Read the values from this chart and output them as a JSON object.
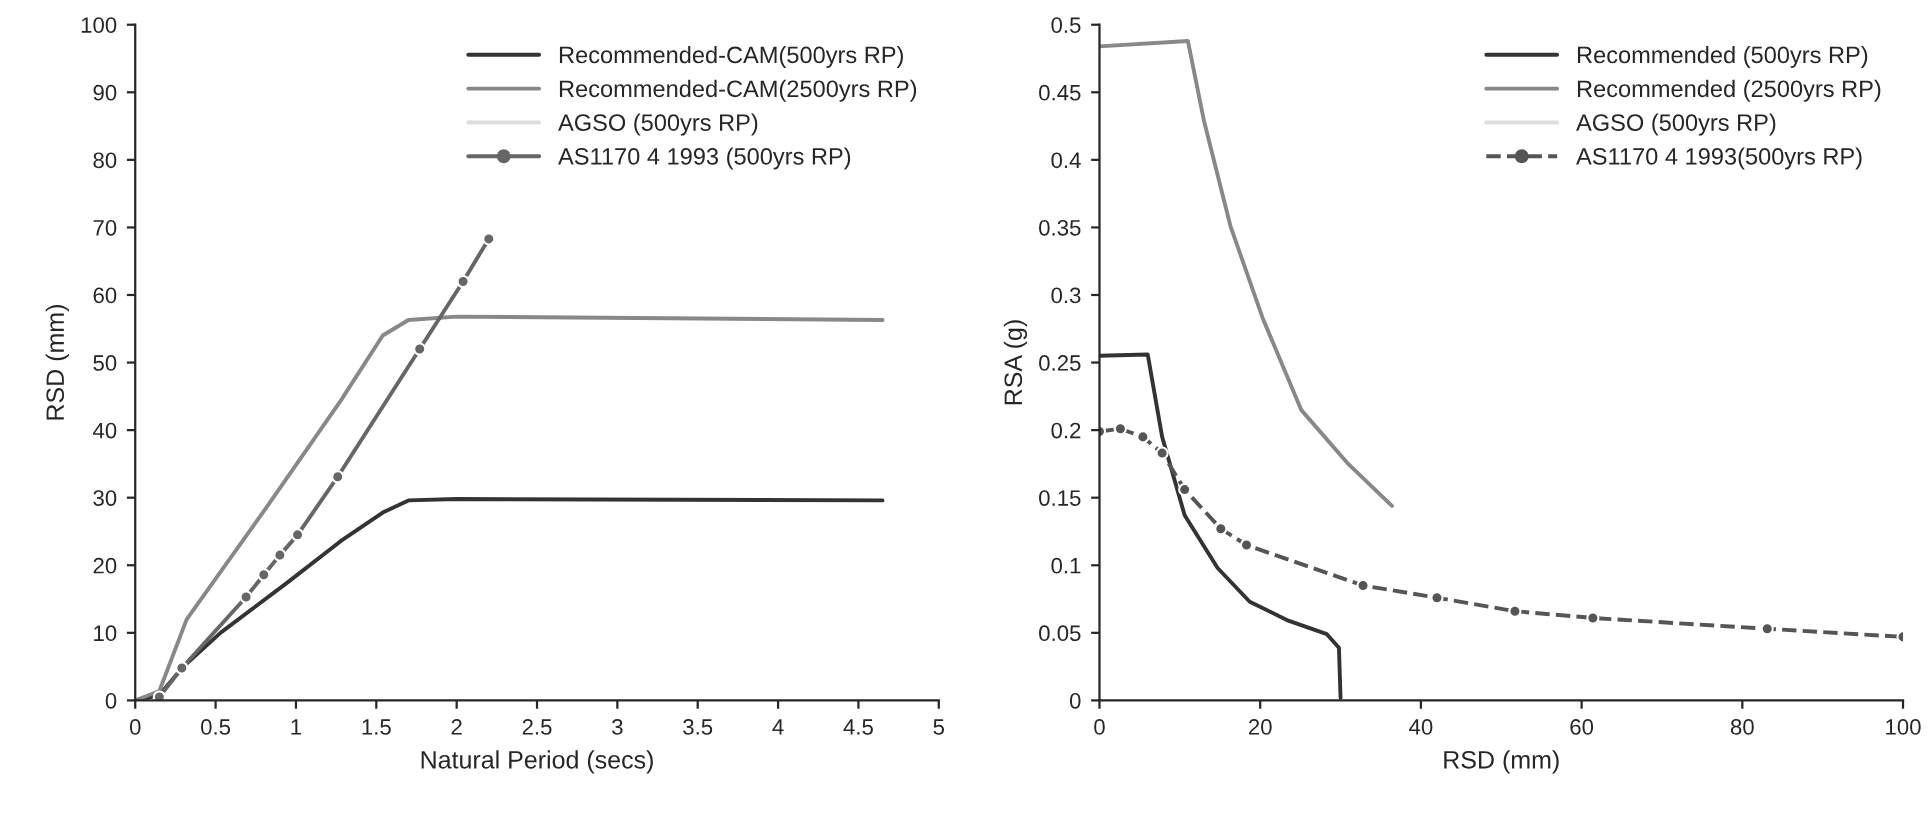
{
  "chart_data": [
    {
      "type": "line",
      "xlabel": "Natural Period (secs)",
      "ylabel": "RSD (mm)",
      "xlim": [
        0,
        5
      ],
      "xticks": [
        0,
        0.5,
        1,
        1.5,
        2,
        2.5,
        3,
        3.5,
        4,
        4.5,
        5
      ],
      "ylim": [
        0,
        100
      ],
      "yticks": [
        0,
        10,
        20,
        30,
        40,
        50,
        60,
        70,
        80,
        90,
        100
      ],
      "grid": false,
      "legend": "top right",
      "series": [
        {
          "name": "Recommended-CAM(500yrs RP)",
          "color": "#333333",
          "line_style": "solid",
          "marker": "none",
          "x": [
            0,
            0.15,
            0.3,
            0.53,
            0.95,
            1.28,
            1.54,
            1.7,
            2.0,
            4.65
          ],
          "values": [
            0,
            0.8,
            5,
            10,
            17.5,
            23.6,
            27.8,
            29.6,
            29.8,
            29.6
          ]
        },
        {
          "name": "Recommended-CAM(2500yrs RP)",
          "color": "#888888",
          "line_style": "solid",
          "marker": "none",
          "x": [
            0,
            0.15,
            0.32,
            0.8,
            1.28,
            1.54,
            1.7,
            2.0,
            4.65
          ],
          "values": [
            0,
            1.4,
            12,
            28,
            44.4,
            54,
            56.3,
            56.8,
            56.3
          ]
        },
        {
          "name": "AGSO (500yrs RP)",
          "color": "#dddddd",
          "line_style": "solid",
          "marker": "none"
        },
        {
          "name": "AS1170 4 1993 (500yrs RP)",
          "color": "#666666",
          "line_style": "solid",
          "marker": "circle",
          "x": [
            0.15,
            0.29,
            0.69,
            0.8,
            0.9,
            1.01,
            1.26,
            1.77,
            2.04,
            2.2
          ],
          "values": [
            0.5,
            4.8,
            15.3,
            18.6,
            21.5,
            24.5,
            33.1,
            52,
            62,
            68.3
          ]
        }
      ]
    },
    {
      "type": "line",
      "xlabel": "RSD (mm)",
      "ylabel": "RSA (g)",
      "xlim": [
        0,
        100
      ],
      "xticks": [
        0,
        20,
        40,
        60,
        80,
        100
      ],
      "ylim": [
        0,
        0.5
      ],
      "yticks": [
        0,
        0.05,
        0.1,
        0.15,
        0.2,
        0.25,
        0.3,
        0.35,
        0.4,
        0.45,
        0.5
      ],
      "grid": false,
      "legend": "top right",
      "series": [
        {
          "name": "Recommended (500yrs RP)",
          "color": "#333333",
          "line_style": "solid",
          "marker": "none",
          "x": [
            0,
            6.0,
            7.8,
            10.6,
            14.7,
            18.7,
            23.5,
            28.3,
            29.8,
            30
          ],
          "values": [
            0.255,
            0.256,
            0.195,
            0.137,
            0.098,
            0.073,
            0.059,
            0.049,
            0.039,
            0.002
          ]
        },
        {
          "name": "Recommended (2500yrs RP)",
          "color": "#888888",
          "line_style": "solid",
          "marker": "none",
          "x": [
            0,
            11,
            13,
            16.3,
            20.3,
            25.1,
            30.8,
            36.4
          ],
          "values": [
            0.484,
            0.488,
            0.429,
            0.351,
            0.283,
            0.215,
            0.176,
            0.144
          ]
        },
        {
          "name": "AGSO (500yrs RP)",
          "color": "#dddddd",
          "line_style": "solid",
          "marker": "none"
        },
        {
          "name": "AS1170 4 1993(500yrs RP)",
          "color": "#555555",
          "line_style": "dashed",
          "marker": "circle",
          "x": [
            0,
            2.6,
            5.4,
            7.8,
            10.6,
            15.1,
            18.3,
            32.8,
            42,
            51.7,
            61.4,
            83.1,
            100
          ],
          "values": [
            0.199,
            0.201,
            0.195,
            0.183,
            0.156,
            0.127,
            0.115,
            0.085,
            0.076,
            0.066,
            0.061,
            0.053,
            0.047
          ]
        }
      ]
    }
  ]
}
